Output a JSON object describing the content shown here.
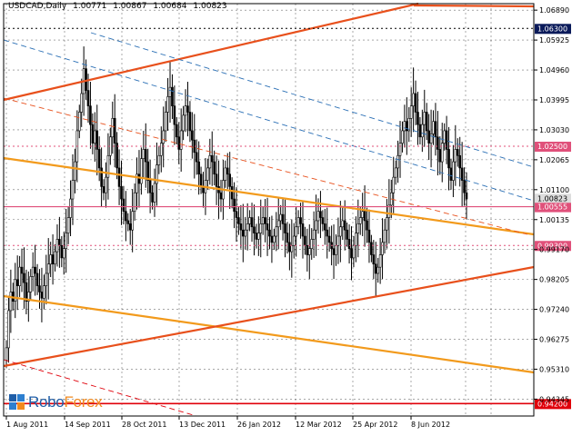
{
  "header": {
    "symbol": "USDCAD,Daily",
    "open": "1.00771",
    "high": "1.00867",
    "low": "1.00684",
    "close": "1.00823"
  },
  "logo": {
    "text_a": "Robo",
    "text_b": "Forex"
  },
  "colors": {
    "background": "#ffffff",
    "candles": "#000000",
    "grid": "#000000",
    "trend_orange_red": "#e8501c",
    "trend_orange": "#f29a1c",
    "channel_blue": "#2a6fb5",
    "level_pink": "#e0507a",
    "level_red": "#e0000a",
    "label_navy": "#0a1a5a"
  },
  "chart_data": {
    "type": "candlestick",
    "y_ticks": [
      "1.06890",
      "1.05925",
      "1.04960",
      "1.03995",
      "1.03030",
      "1.02065",
      "1.01100",
      "1.00135",
      "0.99170",
      "0.98205",
      "0.97240",
      "0.96275",
      "0.95310",
      "0.94345"
    ],
    "x_ticks": [
      "1 Aug 2011",
      "14 Sep 2011",
      "28 Oct 2011",
      "13 Dec 2011",
      "26 Jan 2012",
      "12 Mar 2012",
      "25 Apr 2012",
      "8 Jun 2012"
    ],
    "ylim": [
      0.938,
      1.071
    ],
    "levels": [
      {
        "value": 1.063,
        "label": "1.06300",
        "style": "navy"
      },
      {
        "value": 1.025,
        "label": "1.02500",
        "style": "pink"
      },
      {
        "value": 1.0055,
        "label": "1.00555",
        "style": "pink"
      },
      {
        "value": 0.993,
        "label": "0.99300",
        "style": "pink"
      },
      {
        "value": 0.942,
        "label": "0.94200",
        "style": "red"
      }
    ],
    "current_price_label": "1.00823",
    "closes": [
      0.96,
      0.972,
      0.978,
      0.975,
      0.982,
      0.98,
      0.986,
      0.984,
      0.981,
      0.975,
      0.978,
      0.983,
      0.986,
      0.984,
      0.98,
      0.978,
      0.976,
      0.98,
      0.984,
      0.987,
      0.99,
      0.987,
      0.991,
      0.995,
      0.993,
      0.989,
      0.992,
      0.997,
      1.002,
      1.008,
      1.014,
      1.02,
      1.03,
      1.036,
      1.042,
      1.05,
      1.043,
      1.038,
      1.032,
      1.026,
      1.03,
      1.024,
      1.018,
      1.012,
      1.01,
      1.015,
      1.022,
      1.028,
      1.034,
      1.026,
      1.018,
      1.012,
      1.008,
      1.004,
      1.001,
      1.0,
      0.998,
      1.004,
      1.01,
      1.016,
      1.013,
      1.021,
      1.024,
      1.02,
      1.014,
      1.01,
      1.007,
      1.013,
      1.019,
      1.022,
      1.026,
      1.03,
      1.036,
      1.041,
      1.044,
      1.038,
      1.032,
      1.028,
      1.024,
      1.03,
      1.035,
      1.038,
      1.036,
      1.03,
      1.027,
      1.023,
      1.02,
      1.016,
      1.012,
      1.01,
      1.014,
      1.018,
      1.022,
      1.02,
      1.016,
      1.012,
      1.01,
      1.008,
      1.014,
      1.018,
      1.016,
      1.012,
      1.008,
      1.004,
      1.002,
      1.0,
      0.998,
      0.996,
      0.998,
      1.0,
      1.002,
      0.999,
      0.997,
      0.995,
      0.997,
      1.0,
      1.002,
      1.0,
      0.998,
      0.996,
      0.994,
      0.996,
      0.999,
      1.001,
      1.003,
      1.0,
      0.997,
      0.994,
      0.991,
      0.993,
      0.996,
      0.999,
      1.002,
      1.0,
      0.996,
      0.993,
      0.99,
      0.992,
      0.995,
      0.998,
      1.001,
      1.004,
      1.002,
      1.0,
      0.998,
      0.996,
      0.994,
      0.992,
      0.99,
      0.993,
      0.996,
      0.999,
      1.001,
      0.998,
      0.995,
      0.992,
      0.989,
      0.993,
      0.997,
      1.0,
      1.002,
      1.004,
      1.001,
      0.998,
      0.994,
      0.99,
      0.987,
      0.984,
      0.986,
      0.99,
      0.994,
      0.998,
      1.002,
      1.006,
      1.01,
      1.015,
      1.018,
      1.022,
      1.026,
      1.03,
      1.033,
      1.03,
      1.034,
      1.038,
      1.042,
      1.036,
      1.032,
      1.028,
      1.032,
      1.036,
      1.03,
      1.026,
      1.029,
      1.033,
      1.028,
      1.024,
      1.02,
      1.026,
      1.03,
      1.024,
      1.018,
      1.014,
      1.02,
      1.024,
      1.022,
      1.018,
      1.014,
      1.01,
      1.008
    ]
  }
}
